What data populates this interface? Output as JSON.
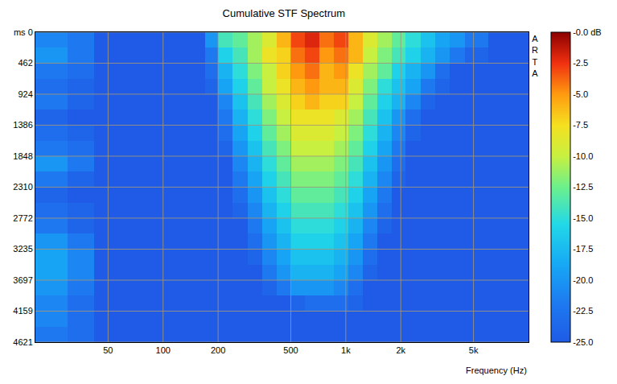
{
  "chart_data": {
    "type": "heatmap",
    "title": "Cumulative STF Spectrum",
    "xlabel": "Frequency (Hz)",
    "annotation": "ARTA",
    "log": "x",
    "grid": true,
    "xlim": [
      20,
      10000
    ],
    "xticks": [
      50,
      100,
      200,
      500,
      {
        "value": 1000,
        "label": "1k"
      },
      {
        "value": 2000,
        "label": "2k"
      },
      {
        "value": 5000,
        "label": "5k"
      }
    ],
    "ylim": [
      0,
      4621
    ],
    "yticks": [
      {
        "value": 0,
        "label": "ms 0"
      },
      462,
      924,
      1386,
      1848,
      2310,
      2772,
      3235,
      3697,
      4159,
      4621
    ],
    "zlim": [
      -25,
      0
    ],
    "zticks": [
      {
        "value": 0,
        "label": "-0.0 dB"
      },
      -2.5,
      {
        "value": -5,
        "label": "-5.0"
      },
      -7.5,
      {
        "value": -10,
        "label": "-10.0"
      },
      -12.5,
      {
        "value": -15,
        "label": "-15.0"
      },
      -17.5,
      {
        "value": -20,
        "label": "-20.0"
      },
      -22.5,
      {
        "value": -25,
        "label": "-25.0"
      }
    ],
    "x": [
      20,
      30,
      42,
      60,
      85,
      120,
      170,
      200,
      240,
      290,
      350,
      420,
      500,
      600,
      720,
      860,
      1030,
      1240,
      1480,
      1780,
      2130,
      2560,
      3070,
      3700,
      4500,
      6000,
      10000
    ],
    "y": [
      0,
      231,
      462,
      693,
      924,
      1155,
      1386,
      1617,
      1848,
      2079,
      2310,
      2541,
      2772,
      3004,
      3235,
      3466,
      3697,
      3928,
      4159,
      4390,
      4621
    ],
    "z": [
      [
        -21,
        -22,
        -25,
        -25,
        -25,
        -25,
        -20,
        -14,
        -13,
        -11,
        -9,
        -6,
        -3,
        -2,
        -4,
        -3,
        -6,
        -9,
        -11,
        -13,
        -15,
        -17,
        -19,
        -20,
        -22,
        -25
      ],
      [
        -20,
        -22,
        -25,
        -25,
        -25,
        -25,
        -22,
        -16,
        -14,
        -11,
        -8,
        -7,
        -4,
        -3,
        -5,
        -4,
        -6,
        -10,
        -12,
        -14,
        -16,
        -18,
        -20,
        -22,
        -24,
        -25
      ],
      [
        -22,
        -23,
        -25,
        -25,
        -25,
        -25,
        -23,
        -18,
        -15,
        -12,
        -10,
        -7,
        -5,
        -4,
        -6,
        -5,
        -8,
        -11,
        -13,
        -16,
        -18,
        -20,
        -23,
        -25,
        -25,
        -25
      ],
      [
        -23,
        -24,
        -25,
        -25,
        -25,
        -25,
        -24,
        -19,
        -16,
        -13,
        -10,
        -8,
        -6,
        -5,
        -6,
        -6,
        -9,
        -12,
        -15,
        -17,
        -19,
        -22,
        -24,
        -25,
        -25,
        -25
      ],
      [
        -22,
        -24,
        -25,
        -25,
        -25,
        -25,
        -25,
        -21,
        -17,
        -14,
        -11,
        -9,
        -7,
        -6,
        -7,
        -7,
        -10,
        -13,
        -16,
        -18,
        -21,
        -24,
        -25,
        -25,
        -25,
        -25
      ],
      [
        -24,
        -25,
        -25,
        -25,
        -25,
        -25,
        -25,
        -22,
        -18,
        -15,
        -12,
        -10,
        -8,
        -8,
        -8,
        -9,
        -11,
        -14,
        -17,
        -20,
        -23,
        -25,
        -25,
        -25,
        -25,
        -25
      ],
      [
        -23,
        -24,
        -25,
        -25,
        -25,
        -25,
        -25,
        -23,
        -19,
        -16,
        -13,
        -11,
        -9,
        -9,
        -9,
        -10,
        -12,
        -15,
        -18,
        -21,
        -24,
        -25,
        -25,
        -25,
        -25,
        -25
      ],
      [
        -22,
        -23,
        -25,
        -25,
        -25,
        -25,
        -25,
        -24,
        -20,
        -17,
        -14,
        -12,
        -10,
        -10,
        -10,
        -11,
        -13,
        -16,
        -19,
        -22,
        -25,
        -25,
        -25,
        -25,
        -25,
        -25
      ],
      [
        -20,
        -22,
        -25,
        -25,
        -25,
        -25,
        -25,
        -25,
        -21,
        -18,
        -15,
        -13,
        -11,
        -11,
        -11,
        -12,
        -14,
        -17,
        -20,
        -23,
        -25,
        -25,
        -25,
        -25,
        -25,
        -25
      ],
      [
        -22,
        -24,
        -25,
        -25,
        -25,
        -25,
        -25,
        -25,
        -22,
        -19,
        -16,
        -14,
        -12,
        -12,
        -12,
        -13,
        -15,
        -18,
        -21,
        -24,
        -25,
        -25,
        -25,
        -25,
        -25,
        -25
      ],
      [
        -24,
        -25,
        -25,
        -25,
        -25,
        -25,
        -25,
        -25,
        -23,
        -20,
        -17,
        -15,
        -13,
        -13,
        -13,
        -14,
        -16,
        -19,
        -22,
        -25,
        -25,
        -25,
        -25,
        -25,
        -25,
        -25
      ],
      [
        -23,
        -24,
        -25,
        -25,
        -25,
        -25,
        -25,
        -25,
        -24,
        -21,
        -18,
        -16,
        -14,
        -14,
        -14,
        -15,
        -17,
        -20,
        -23,
        -25,
        -25,
        -25,
        -25,
        -25,
        -25,
        -25
      ],
      [
        -22,
        -24,
        -25,
        -25,
        -25,
        -25,
        -25,
        -25,
        -25,
        -22,
        -19,
        -17,
        -15,
        -15,
        -15,
        -16,
        -18,
        -21,
        -24,
        -25,
        -25,
        -25,
        -25,
        -25,
        -25,
        -25
      ],
      [
        -20,
        -22,
        -25,
        -25,
        -25,
        -25,
        -25,
        -25,
        -25,
        -23,
        -20,
        -18,
        -16,
        -16,
        -16,
        -17,
        -19,
        -22,
        -25,
        -25,
        -25,
        -25,
        -25,
        -25,
        -25,
        -25
      ],
      [
        -19,
        -21,
        -25,
        -25,
        -25,
        -25,
        -25,
        -25,
        -25,
        -24,
        -21,
        -19,
        -17,
        -17,
        -17,
        -18,
        -20,
        -23,
        -25,
        -25,
        -25,
        -25,
        -25,
        -25,
        -25,
        -25
      ],
      [
        -19,
        -21,
        -25,
        -25,
        -25,
        -25,
        -25,
        -25,
        -25,
        -25,
        -22,
        -20,
        -18,
        -18,
        -18,
        -19,
        -21,
        -24,
        -25,
        -25,
        -25,
        -25,
        -25,
        -25,
        -25,
        -25
      ],
      [
        -20,
        -22,
        -25,
        -25,
        -25,
        -25,
        -25,
        -25,
        -25,
        -25,
        -24,
        -22,
        -20,
        -20,
        -20,
        -21,
        -23,
        -25,
        -25,
        -25,
        -25,
        -25,
        -25,
        -25,
        -25,
        -25
      ],
      [
        -21,
        -23,
        -25,
        -25,
        -25,
        -25,
        -25,
        -25,
        -25,
        -25,
        -25,
        -25,
        -24,
        -23,
        -23,
        -23,
        -24,
        -25,
        -25,
        -25,
        -25,
        -25,
        -25,
        -25,
        -25,
        -25
      ],
      [
        -21,
        -23,
        -25,
        -25,
        -25,
        -25,
        -25,
        -25,
        -25,
        -25,
        -25,
        -25,
        -25,
        -25,
        -25,
        -25,
        -25,
        -25,
        -25,
        -25,
        -25,
        -25,
        -25,
        -25,
        -25,
        -25
      ],
      [
        -22,
        -23,
        -25,
        -25,
        -25,
        -25,
        -25,
        -25,
        -25,
        -25,
        -25,
        -25,
        -25,
        -25,
        -25,
        -25,
        -25,
        -25,
        -25,
        -25,
        -25,
        -25,
        -25,
        -25,
        -25,
        -25
      ]
    ]
  }
}
